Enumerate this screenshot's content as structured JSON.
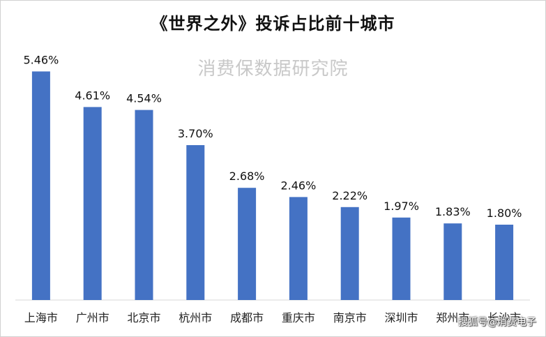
{
  "chart_data": {
    "type": "bar",
    "title": "《世界之外》投诉占比前十城市",
    "categories": [
      "上海市",
      "广州市",
      "北京市",
      "杭州市",
      "成都市",
      "重庆市",
      "南京市",
      "深圳市",
      "郑州市",
      "长沙市"
    ],
    "values": [
      5.46,
      4.61,
      4.54,
      3.7,
      2.68,
      2.46,
      2.22,
      1.97,
      1.83,
      1.8
    ],
    "value_labels": [
      "5.46%",
      "4.61%",
      "4.54%",
      "3.70%",
      "2.68%",
      "2.46%",
      "2.22%",
      "1.97%",
      "1.83%",
      "1.80%"
    ],
    "unit": "%",
    "ylim": [
      0,
      6.5
    ],
    "xlabel": "",
    "ylabel": "",
    "grid": false,
    "legend": "none",
    "colors": {
      "bar": "#4472C4"
    }
  },
  "watermarks": {
    "top": "消费保数据研究院",
    "corner": "搜狐号@消费电子"
  }
}
